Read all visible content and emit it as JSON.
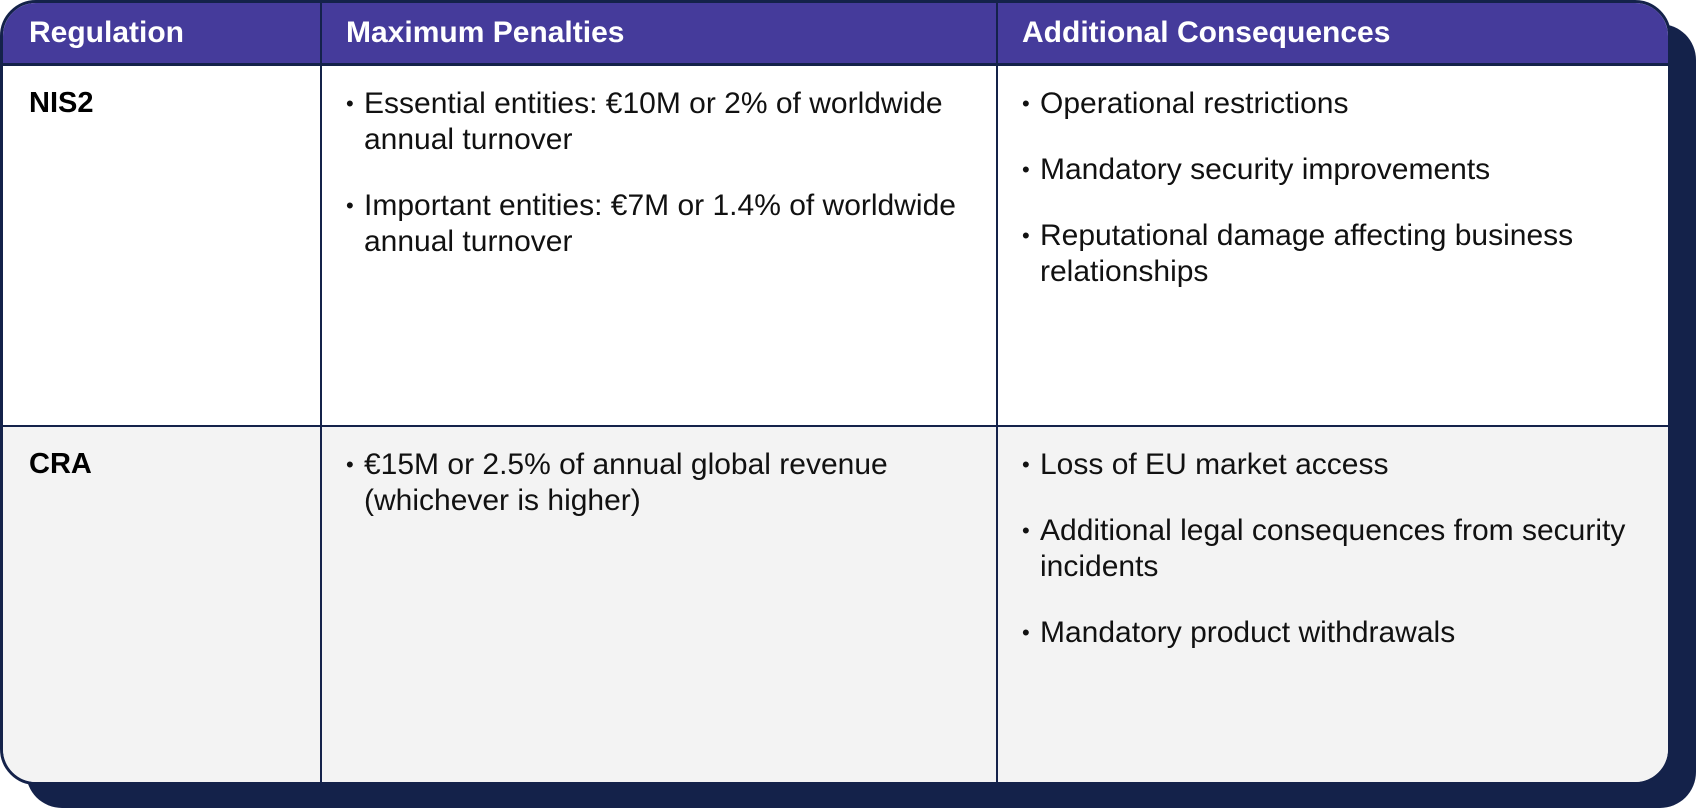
{
  "table": {
    "headers": [
      "Regulation",
      "Maximum Penalties",
      "Additional Consequences"
    ],
    "rows": [
      {
        "regulation": "NIS2",
        "penalties": [
          "Essential entities: €10M or 2% of worldwide annual turnover",
          "Important entities: €7M or 1.4% of worldwide annual turnover"
        ],
        "consequences": [
          "Operational restrictions",
          "Mandatory security improvements",
          "Reputational damage affecting business relationships"
        ]
      },
      {
        "regulation": "CRA",
        "penalties": [
          "€15M or 2.5% of annual global revenue (whichever is higher)"
        ],
        "consequences": [
          "Loss of EU market access",
          "Additional legal consequences from security incidents",
          "Mandatory product withdrawals"
        ]
      }
    ]
  },
  "colors": {
    "header_background": "#453b9b",
    "border": "#14224a",
    "shadow": "#14224a",
    "alt_row_background": "#f3f3f3"
  }
}
